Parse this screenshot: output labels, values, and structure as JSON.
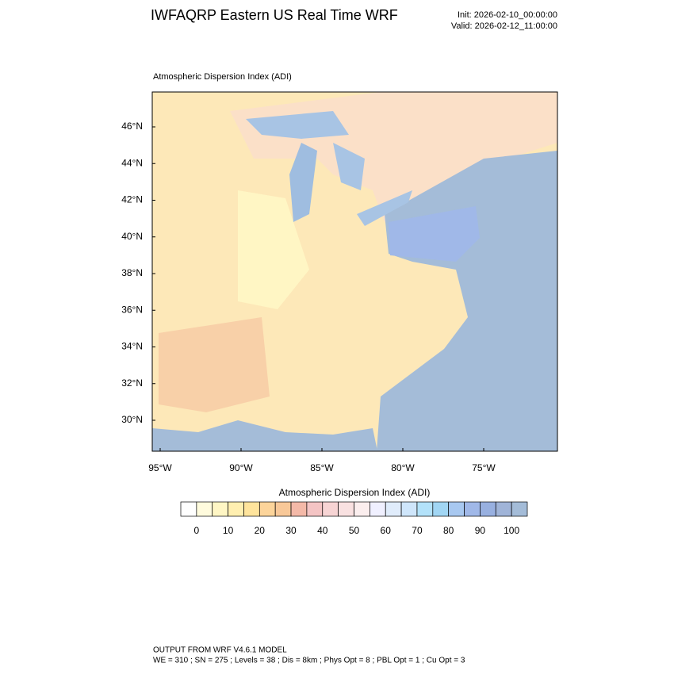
{
  "header": {
    "title": "IWFAQRP Eastern US Real Time WRF",
    "init": "Init: 2026-02-10_00:00:00",
    "valid": "Valid: 2026-02-12_11:00:00"
  },
  "map": {
    "title": "Atmospheric Dispersion Index   (ADI)",
    "lat_labels": [
      "46°N",
      "44°N",
      "42°N",
      "40°N",
      "38°N",
      "36°N",
      "34°N",
      "32°N",
      "30°N"
    ],
    "lon_labels": [
      "95°W",
      "90°W",
      "85°W",
      "80°W",
      "75°W"
    ]
  },
  "colorbar": {
    "title": "Atmospheric Dispersion Index  (ADI)",
    "ticks": [
      0,
      10,
      20,
      30,
      40,
      50,
      60,
      70,
      80,
      90,
      100
    ],
    "colors": [
      "#ffffff",
      "#fffbdd",
      "#fff6c4",
      "#ffefb0",
      "#ffe49c",
      "#fcd49a",
      "#f8c898",
      "#f4b9a8",
      "#f4c4c4",
      "#f7d4d4",
      "#f9e1e1",
      "#fbeeee",
      "#f0f0ff",
      "#e0ecfb",
      "#cfe6fb",
      "#b3e2fa",
      "#a1d6f4",
      "#a8c8f0",
      "#a0b8e8",
      "#98b0e0",
      "#a0b4d8",
      "#a4bcd8"
    ]
  },
  "footer": {
    "line1": "OUTPUT FROM WRF V4.6.1 MODEL",
    "line2": "WE = 310 ; SN = 275 ; Levels = 38 ; Dis = 8km ; Phys Opt = 8 ; PBL Opt = 1 ; Cu Opt = 3"
  }
}
